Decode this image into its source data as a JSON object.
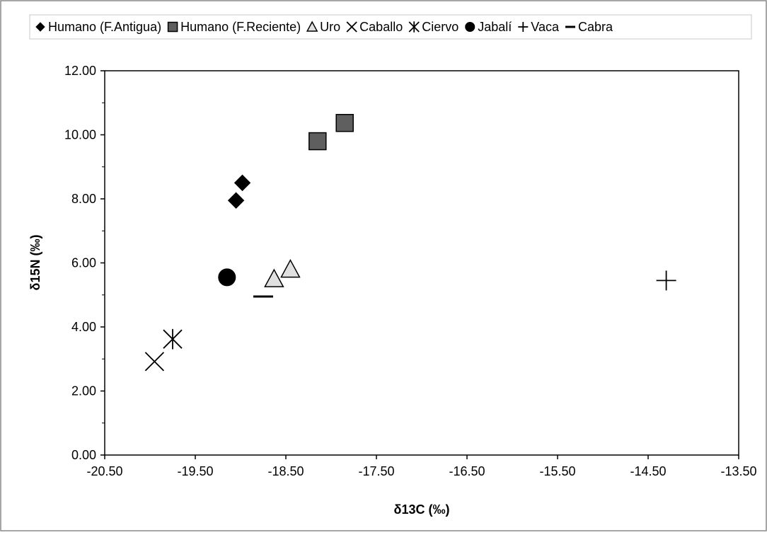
{
  "chart_data": {
    "type": "scatter",
    "xlabel": "δ13C (‰)",
    "ylabel": "δ15N (‰)",
    "xlim": [
      -20.5,
      -13.5
    ],
    "ylim": [
      0,
      12
    ],
    "x_ticks": [
      -20.5,
      -19.5,
      -18.5,
      -17.5,
      -16.5,
      -15.5,
      -14.5,
      -13.5
    ],
    "x_tick_labels": [
      "-20.50",
      "-19.50",
      "-18.50",
      "-17.50",
      "-16.50",
      "-15.50",
      "-14.50",
      "-13.50"
    ],
    "y_ticks": [
      0,
      2,
      4,
      6,
      8,
      10,
      12
    ],
    "y_tick_labels": [
      "0.00",
      "2.00",
      "4.00",
      "6.00",
      "8.00",
      "10.00",
      "12.00"
    ],
    "grid": false,
    "legend_position": "top",
    "series": [
      {
        "name": "Humano (F.Antigua)",
        "marker": "diamond",
        "color": "#000000",
        "points": [
          {
            "x": -19.05,
            "y": 7.95
          },
          {
            "x": -18.98,
            "y": 8.5
          }
        ]
      },
      {
        "name": "Humano (F.Reciente)",
        "marker": "square",
        "color": "#5f5f5f",
        "points": [
          {
            "x": -18.15,
            "y": 9.8
          },
          {
            "x": -17.85,
            "y": 10.37
          }
        ]
      },
      {
        "name": "Uro",
        "marker": "triangle",
        "color": "#e0e0e0",
        "points": [
          {
            "x": -18.63,
            "y": 5.5
          },
          {
            "x": -18.45,
            "y": 5.8
          }
        ]
      },
      {
        "name": "Caballo",
        "marker": "x",
        "color": "#000000",
        "points": [
          {
            "x": -19.95,
            "y": 2.92
          }
        ]
      },
      {
        "name": "Ciervo",
        "marker": "asterisk",
        "color": "#000000",
        "points": [
          {
            "x": -19.75,
            "y": 3.62
          }
        ]
      },
      {
        "name": "Jabalí",
        "marker": "circle",
        "color": "#000000",
        "points": [
          {
            "x": -19.15,
            "y": 5.55
          }
        ]
      },
      {
        "name": "Vaca",
        "marker": "plus",
        "color": "#000000",
        "points": [
          {
            "x": -14.3,
            "y": 5.45
          }
        ]
      },
      {
        "name": "Cabra",
        "marker": "dash",
        "color": "#000000",
        "points": [
          {
            "x": -18.75,
            "y": 4.95
          }
        ]
      }
    ]
  }
}
